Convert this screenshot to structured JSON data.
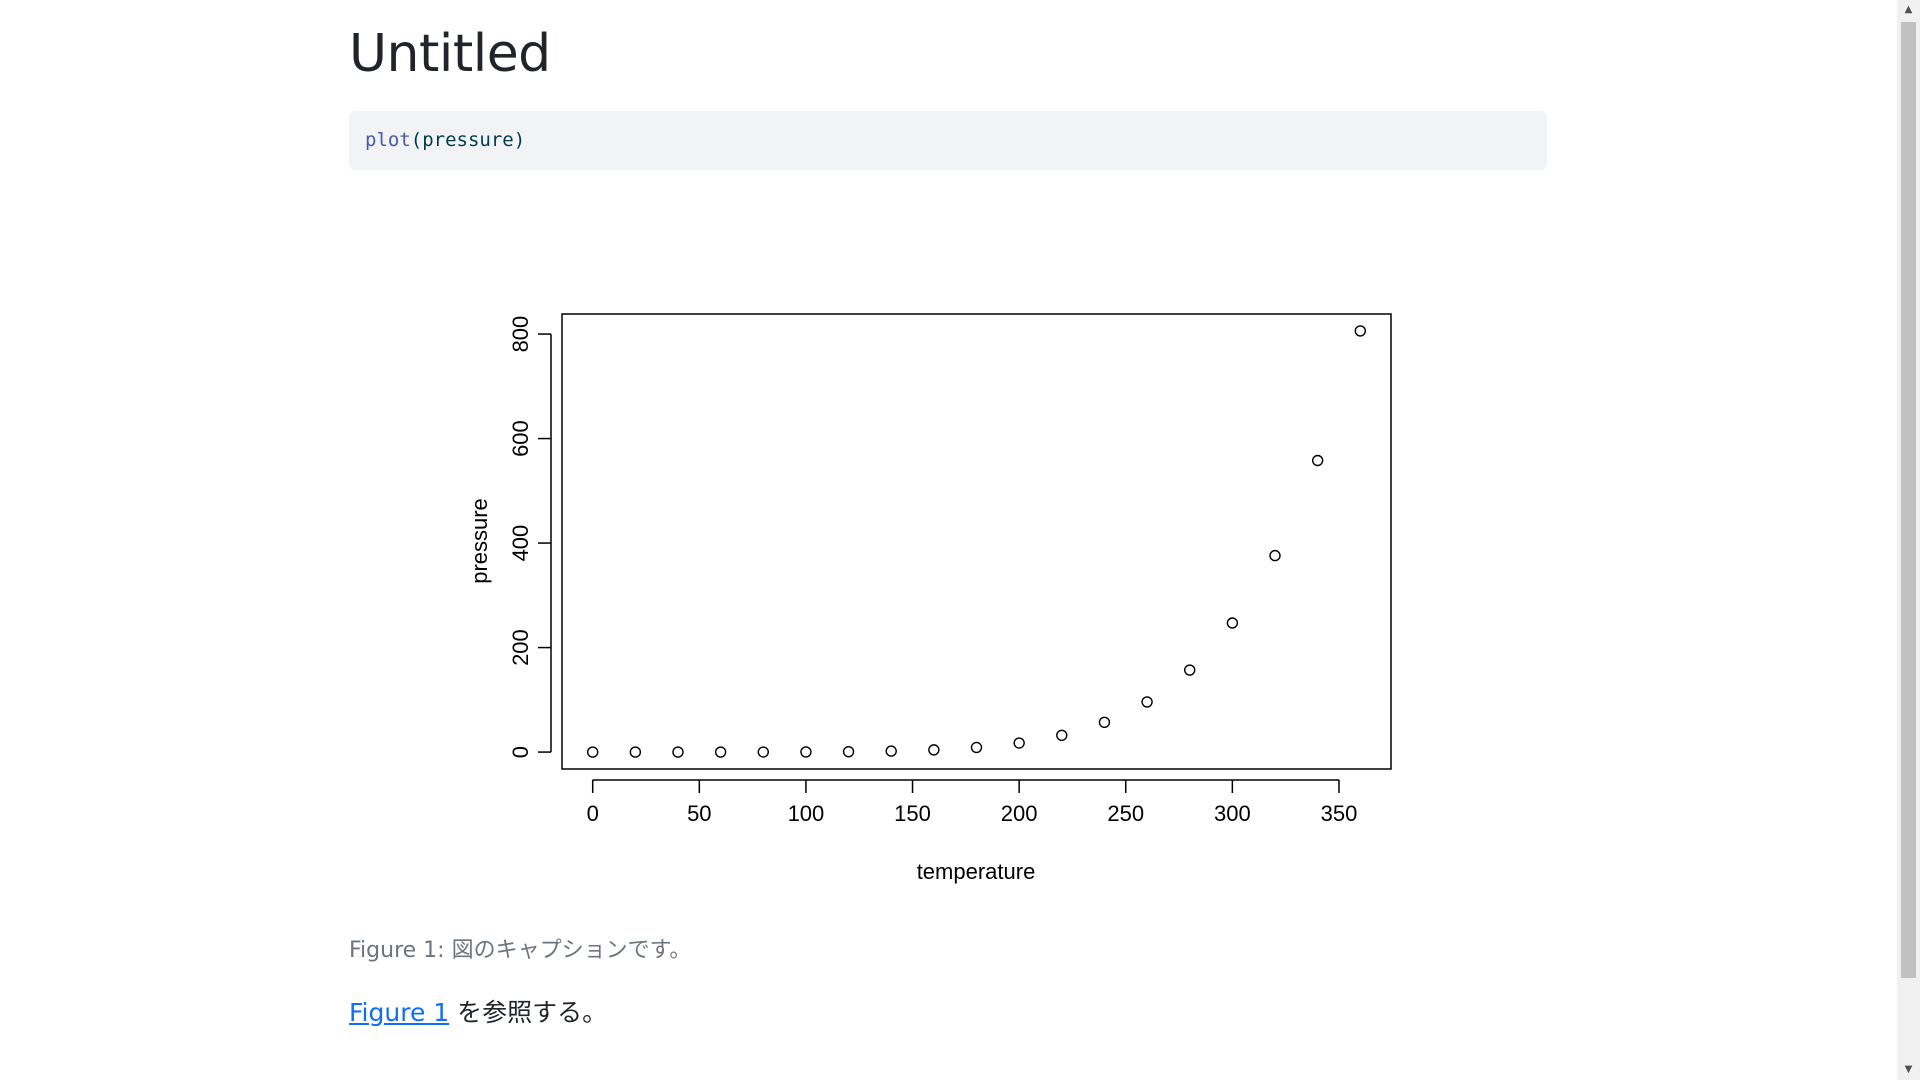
{
  "page": {
    "title": "Untitled",
    "code": {
      "fn": "plot",
      "args": "(pressure)"
    },
    "caption": "Figure 1: 図のキャプションです。",
    "reference": {
      "link_text": "Figure 1",
      "after_text": " を参照する。"
    }
  },
  "scrollbar": {
    "up_icon": "triangle-up",
    "down_icon": "triangle-down"
  },
  "chart_data": {
    "type": "scatter",
    "title": "",
    "xlabel": "temperature",
    "ylabel": "pressure",
    "xlim": [
      -14.4,
      374.4
    ],
    "ylim": [
      -32.4,
      838.4
    ],
    "xticks": [
      0,
      50,
      100,
      150,
      200,
      250,
      300,
      350
    ],
    "yticks": [
      0,
      200,
      400,
      600,
      800
    ],
    "marker": "open-circle",
    "grid": false,
    "series": [
      {
        "x": [
          0,
          20,
          40,
          60,
          80,
          100,
          120,
          140,
          160,
          180,
          200,
          220,
          240,
          260,
          280,
          300,
          320,
          340,
          360
        ],
        "y": [
          0.0002,
          0.0012,
          0.006,
          0.03,
          0.09,
          0.27,
          0.75,
          1.85,
          4.2,
          8.8,
          17.3,
          32.1,
          57,
          96,
          157,
          247,
          376,
          558,
          806
        ]
      }
    ]
  }
}
